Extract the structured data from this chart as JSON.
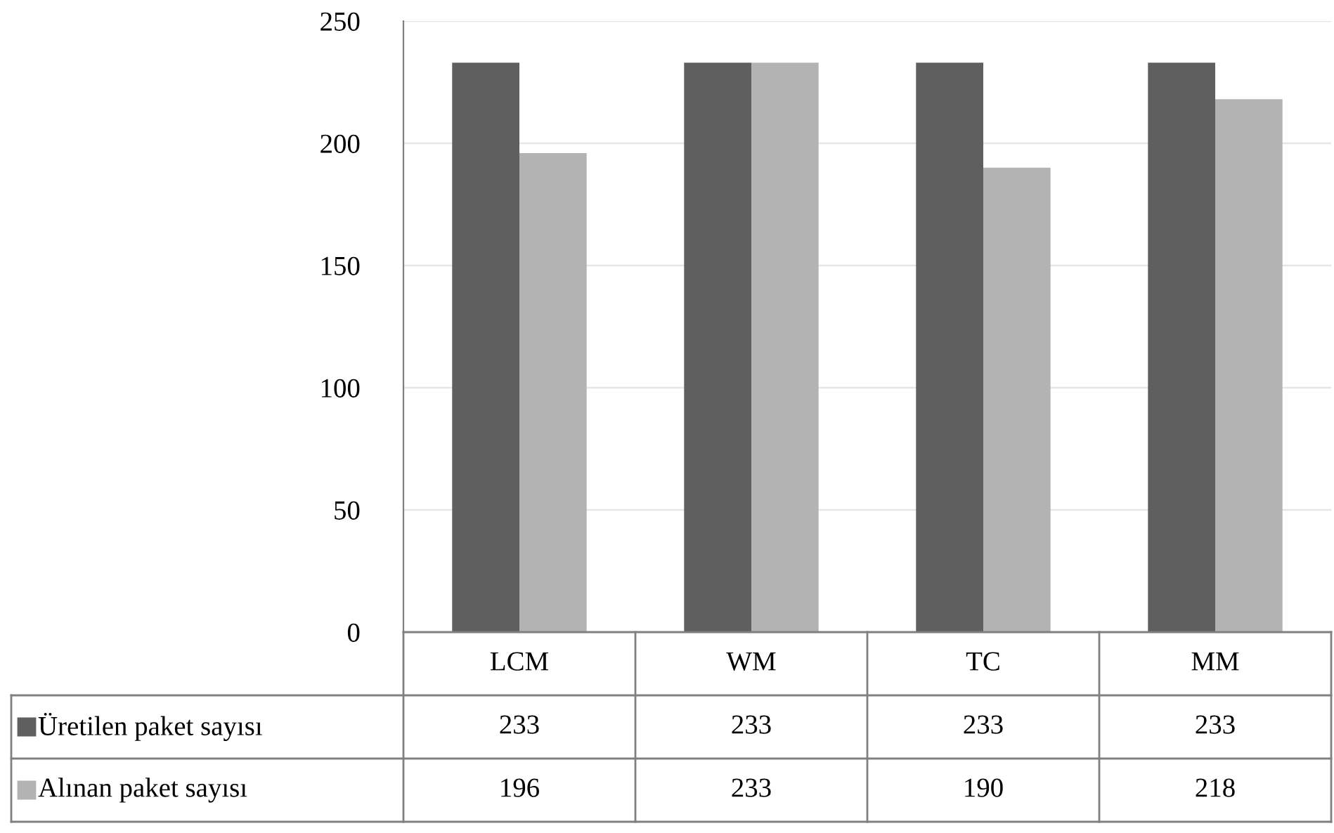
{
  "chart_data": {
    "type": "bar",
    "categories": [
      "LCM",
      "WM",
      "TC",
      "MM"
    ],
    "series": [
      {
        "name": "Üretilen paket sayısı",
        "color": "#5f5f5f",
        "values": [
          233,
          233,
          233,
          233
        ]
      },
      {
        "name": "Alınan paket sayısı",
        "color": "#b3b3b3",
        "values": [
          196,
          233,
          190,
          218
        ]
      }
    ],
    "ylim": [
      0,
      250
    ],
    "yticks": [
      0,
      50,
      100,
      150,
      200,
      250
    ],
    "grid": "y",
    "data_labels": true,
    "legend": "bottom left"
  }
}
